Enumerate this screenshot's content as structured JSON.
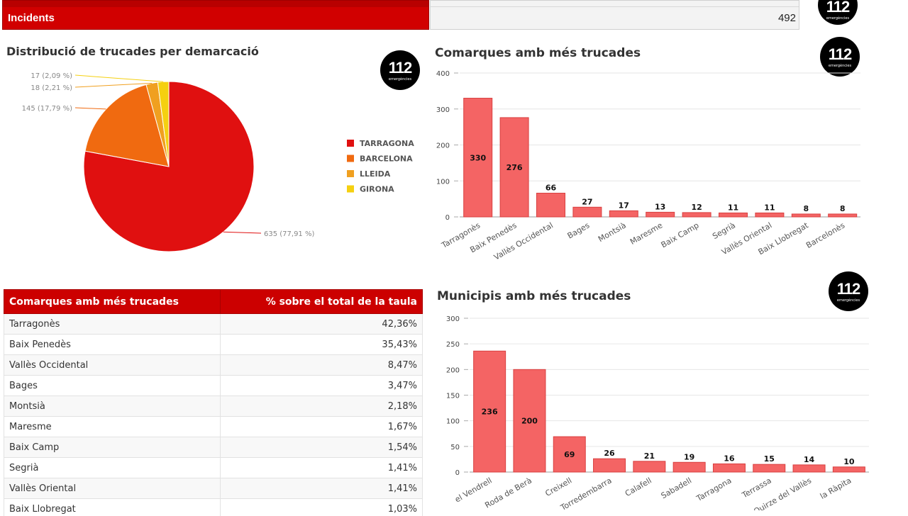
{
  "header": {
    "incidents_label": "Incidents",
    "incidents_value": "492"
  },
  "logo": {
    "number": "112",
    "subtitle": "emergències"
  },
  "colors": {
    "tarragona": "#e01010",
    "barcelona": "#f06a10",
    "lleida": "#f0a020",
    "girona": "#f5d010",
    "bar_fill": "#f46464",
    "bar_stroke": "#d84040",
    "header_red": "#cc0000"
  },
  "chart_data": [
    {
      "type": "pie",
      "title": "Distribució de trucades per demarcació",
      "categories": [
        "TARRAGONA",
        "BARCELONA",
        "LLEIDA",
        "GIRONA"
      ],
      "values": [
        635,
        145,
        18,
        17
      ],
      "slice_labels": [
        "635 (77,91 %)",
        "145 (17,79 %)",
        "18 (2,21 %)",
        "17 (2,09 %)"
      ],
      "legend": "right"
    },
    {
      "type": "bar",
      "title": "Comarques amb més trucades",
      "categories": [
        "Tarragonès",
        "Baix Penedès",
        "Vallès Occidental",
        "Bages",
        "Montsià",
        "Maresme",
        "Baix Camp",
        "Segrià",
        "Vallès Oriental",
        "Baix Llobregat",
        "Barcelonès"
      ],
      "values": [
        330,
        276,
        66,
        27,
        17,
        13,
        12,
        11,
        11,
        8,
        8
      ],
      "ylim": [
        0,
        400
      ],
      "yticks": [
        0,
        100,
        200,
        300,
        400
      ],
      "grid": true
    },
    {
      "type": "bar",
      "title": "Municipis amb més trucades",
      "categories": [
        "el Vendrell",
        "Roda de Berà",
        "Creixell",
        "Torredembarra",
        "Calafell",
        "Sabadell",
        "Tarragona",
        "Terrassa",
        "Sant Quirze del Vallès",
        "la Ràpita"
      ],
      "values": [
        236,
        200,
        69,
        26,
        21,
        19,
        16,
        15,
        14,
        10
      ],
      "ylim": [
        0,
        300
      ],
      "yticks": [
        0,
        50,
        100,
        150,
        200,
        250,
        300
      ],
      "grid": true
    },
    {
      "type": "table",
      "columns": [
        "Comarques amb més trucades",
        "% sobre el total de la taula"
      ],
      "rows": [
        [
          "Tarragonès",
          "42,36%"
        ],
        [
          "Baix Penedès",
          "35,43%"
        ],
        [
          "Vallès Occidental",
          "8,47%"
        ],
        [
          "Bages",
          "3,47%"
        ],
        [
          "Montsià",
          "2,18%"
        ],
        [
          "Maresme",
          "1,67%"
        ],
        [
          "Baix Camp",
          "1,54%"
        ],
        [
          "Segrià",
          "1,41%"
        ],
        [
          "Vallès Oriental",
          "1,41%"
        ],
        [
          "Baix Llobregat",
          "1,03%"
        ]
      ]
    }
  ]
}
